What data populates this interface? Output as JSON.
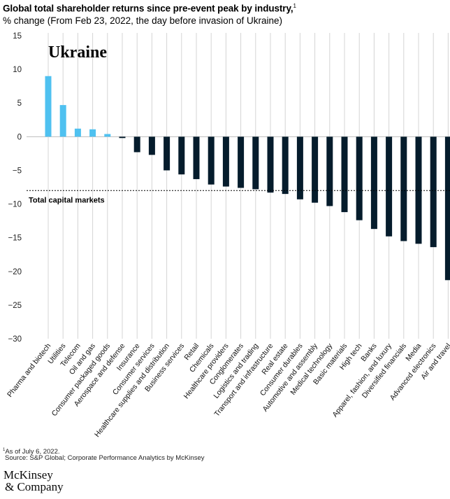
{
  "header": {
    "title": "Global total shareholder returns since pre-event peak by industry,",
    "title_footnote_marker": "1",
    "subtitle": "% change (From Feb 23, 2022, the day before invasion of Ukraine)"
  },
  "chart_data": {
    "type": "bar",
    "panel_label": "Ukraine",
    "ylim": [
      -30,
      15
    ],
    "yticks": [
      15,
      10,
      5,
      0,
      -5,
      -10,
      -15,
      -20,
      -25,
      -30
    ],
    "ytick_labels": [
      "15",
      "10",
      "5",
      "0",
      "−5",
      "−10",
      "−15",
      "−20",
      "−25",
      "−30"
    ],
    "xlabel": "",
    "ylabel": "",
    "grid": true,
    "categories": [
      "Pharma and biotech",
      "Utilities",
      "Telecom",
      "Oil and gas",
      "Consumer packaged goods",
      "Aerospace and defense",
      "Insurance",
      "Consumer services",
      "Healthcare supplies and distribution",
      "Business services",
      "Retail",
      "Chemicals",
      "Healthcare providers",
      "Conglomerates",
      "Logistics and trading",
      "Transport and infrastructure",
      "Real estate",
      "Consumer durables",
      "Automotive and assembly",
      "Medical technology",
      "Basic materials",
      "High tech",
      "Banks",
      "Apparel, fashion, and luxury",
      "Diversified financials",
      "Media",
      "Advanced electronics",
      "Air and travel"
    ],
    "values": [
      9.0,
      4.7,
      1.2,
      1.1,
      0.4,
      -0.2,
      -2.3,
      -2.7,
      -5.0,
      -5.6,
      -6.3,
      -7.1,
      -7.4,
      -7.6,
      -7.8,
      -8.3,
      -8.5,
      -9.3,
      -9.8,
      -10.3,
      -11.2,
      -12.4,
      -13.7,
      -14.8,
      -15.5,
      -15.9,
      -16.4,
      -21.3
    ],
    "reference_line": {
      "label": "Total capital markets",
      "value": -8.0
    },
    "colors": {
      "positive": "#4fc1f0",
      "negative": "#051c2c",
      "grid": "#d4d4d4",
      "reference": "#000000"
    }
  },
  "footnotes": {
    "marker": "1",
    "note": "As of July 6, 2022.",
    "source": "Source: S&P Global; Corporate Performance Analytics by McKinsey"
  },
  "brand": {
    "line1": "McKinsey",
    "line2": "& Company"
  }
}
